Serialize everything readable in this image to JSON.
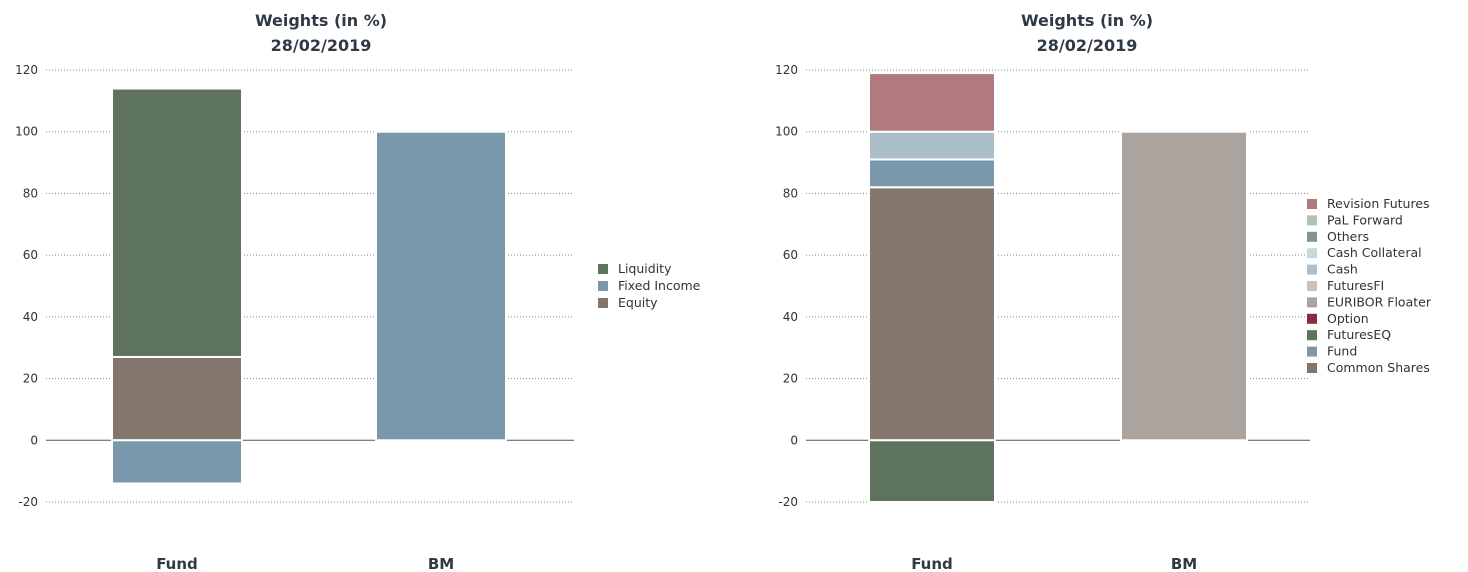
{
  "chart_data": [
    {
      "type": "bar",
      "stacked": true,
      "title": "Weights (in %)",
      "subtitle": "28/02/2019",
      "categories": [
        "Fund",
        "BM"
      ],
      "ylim": [
        -20,
        120
      ],
      "yticks": [
        -20,
        0,
        20,
        40,
        60,
        80,
        100,
        120
      ],
      "grid": true,
      "legend_position": "right",
      "series": [
        {
          "name": "Liquidity",
          "color": "#5d735d",
          "values": [
            87,
            0
          ]
        },
        {
          "name": "Fixed Income",
          "color": "#7a98ab",
          "values": [
            -14,
            100
          ]
        },
        {
          "name": "Equity",
          "color": "#83776d",
          "values": [
            27,
            0
          ]
        }
      ],
      "stack_order": [
        "Equity",
        "Fixed Income",
        "Liquidity"
      ]
    },
    {
      "type": "bar",
      "stacked": true,
      "title": "Weights (in %)",
      "subtitle": "28/02/2019",
      "categories": [
        "Fund",
        "BM"
      ],
      "ylim": [
        -20,
        120
      ],
      "yticks": [
        -20,
        0,
        20,
        40,
        60,
        80,
        100,
        120
      ],
      "grid": true,
      "legend_position": "right",
      "series": [
        {
          "name": "Revision Futures",
          "color": "#b07a7f",
          "values": [
            19,
            0
          ]
        },
        {
          "name": "PaL Forward",
          "color": "#b4c1b1",
          "values": [
            0,
            0
          ]
        },
        {
          "name": "Others",
          "color": "#84988a",
          "values": [
            0,
            0
          ]
        },
        {
          "name": "Cash Collateral",
          "color": "#c9d6df",
          "values": [
            0,
            0
          ]
        },
        {
          "name": "Cash",
          "color": "#aabfca",
          "values": [
            9,
            0
          ]
        },
        {
          "name": "FuturesFI",
          "color": "#c9c2bb",
          "values": [
            0,
            0
          ]
        },
        {
          "name": "EURIBOR Floater",
          "color": "#aba39e",
          "values": [
            0,
            100
          ]
        },
        {
          "name": "Option",
          "color": "#8b2a3e",
          "values": [
            0,
            0
          ]
        },
        {
          "name": "FuturesEQ",
          "color": "#5d735d",
          "values": [
            -20,
            0
          ]
        },
        {
          "name": "Fund",
          "color": "#7a98ab",
          "values": [
            9,
            0
          ]
        },
        {
          "name": "Common Shares",
          "color": "#83776d",
          "values": [
            82,
            0
          ]
        }
      ],
      "stack_order": [
        "Common Shares",
        "Fund",
        "FuturesEQ",
        "Option",
        "EURIBOR Floater",
        "FuturesFI",
        "Cash",
        "Cash Collateral",
        "Others",
        "PaL Forward",
        "Revision Futures"
      ]
    }
  ]
}
